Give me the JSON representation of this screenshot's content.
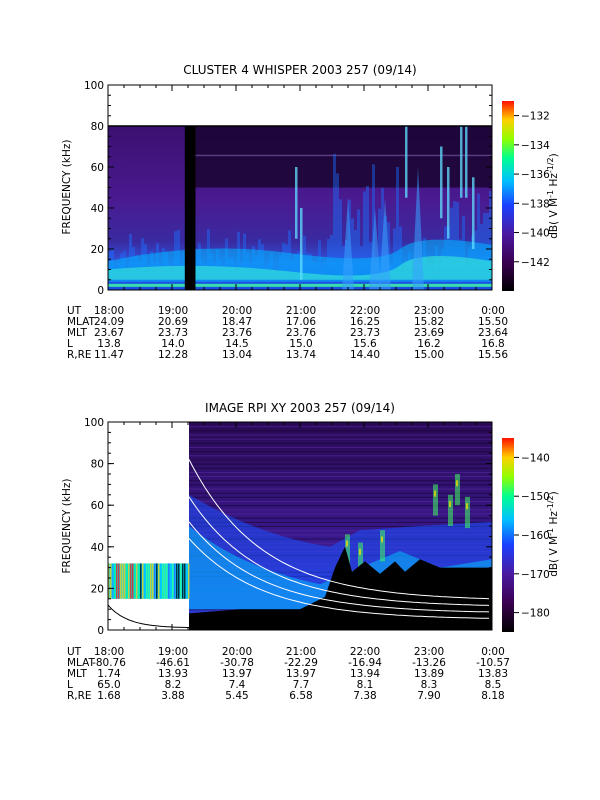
{
  "chart_data": [
    {
      "type": "heatmap",
      "title": "CLUSTER 4 WHISPER 2003 257 (09/14)",
      "ylabel": "FREQUENCY (kHz)",
      "ylim": [
        0,
        100
      ],
      "yticks": [
        "0",
        "20",
        "40",
        "60",
        "80",
        "100"
      ],
      "x": [
        "18:00",
        "19:00",
        "20:00",
        "21:00",
        "22:00",
        "23:00",
        "0:00"
      ],
      "colorbar": {
        "label": "dB( V M^-1 Hz^-1/2)",
        "ticks": [
          "-132",
          "-134",
          "-136",
          "-138",
          "-140",
          "-142"
        ],
        "range": [
          -144,
          -131
        ]
      },
      "data_ceiling_khz": 80,
      "data_gap": [
        "19:12",
        "19:22"
      ],
      "ephemeris": [
        {
          "label": "UT",
          "values": [
            "18:00",
            "19:00",
            "20:00",
            "21:00",
            "22:00",
            "23:00",
            "0:00"
          ]
        },
        {
          "label": "MLAT",
          "values": [
            "24.09",
            "20.69",
            "18.47",
            "17.06",
            "16.25",
            "15.82",
            "15.50"
          ]
        },
        {
          "label": "MLT",
          "values": [
            "23.67",
            "23.73",
            "23.76",
            "23.76",
            "23.73",
            "23.69",
            "23.64"
          ]
        },
        {
          "label": "L",
          "values": [
            "13.8",
            "14.0",
            "14.5",
            "15.0",
            "15.6",
            "16.2",
            "16.8"
          ]
        },
        {
          "label": "R,RE",
          "values": [
            "11.47",
            "12.28",
            "13.04",
            "13.74",
            "14.40",
            "15.00",
            "15.56"
          ]
        }
      ]
    },
    {
      "type": "heatmap",
      "title": "IMAGE RPI XY 2003 257 (09/14)",
      "ylabel": "FREQUENCY (kHz)",
      "ylim": [
        0,
        100
      ],
      "yticks": [
        "0",
        "20",
        "40",
        "60",
        "80",
        "100"
      ],
      "x": [
        "18:00",
        "19:00",
        "20:00",
        "21:00",
        "22:00",
        "23:00",
        "0:00"
      ],
      "colorbar": {
        "label": "dB( V M^-1 Hz^-1/2)",
        "ticks": [
          "-140",
          "-150",
          "-160",
          "-170",
          "-180"
        ],
        "range": [
          -185,
          -135
        ]
      },
      "ephemeris": [
        {
          "label": "UT",
          "values": [
            "18:00",
            "19:00",
            "20:00",
            "21:00",
            "22:00",
            "23:00",
            "0:00"
          ]
        },
        {
          "label": "MLAT",
          "values": [
            "-80.76",
            "-46.61",
            "-30.78",
            "-22.29",
            "-16.94",
            "-13.26",
            "-10.57"
          ]
        },
        {
          "label": "MLT",
          "values": [
            "1.74",
            "13.93",
            "13.97",
            "13.97",
            "13.94",
            "13.89",
            "13.83"
          ]
        },
        {
          "label": "L",
          "values": [
            "65.0",
            "8.2",
            "7.4",
            "7.7",
            "8.1",
            "8.3",
            "8.5"
          ]
        },
        {
          "label": "R,RE",
          "values": [
            "1.68",
            "3.88",
            "5.45",
            "6.58",
            "7.38",
            "7.90",
            "8.18"
          ]
        }
      ]
    }
  ]
}
